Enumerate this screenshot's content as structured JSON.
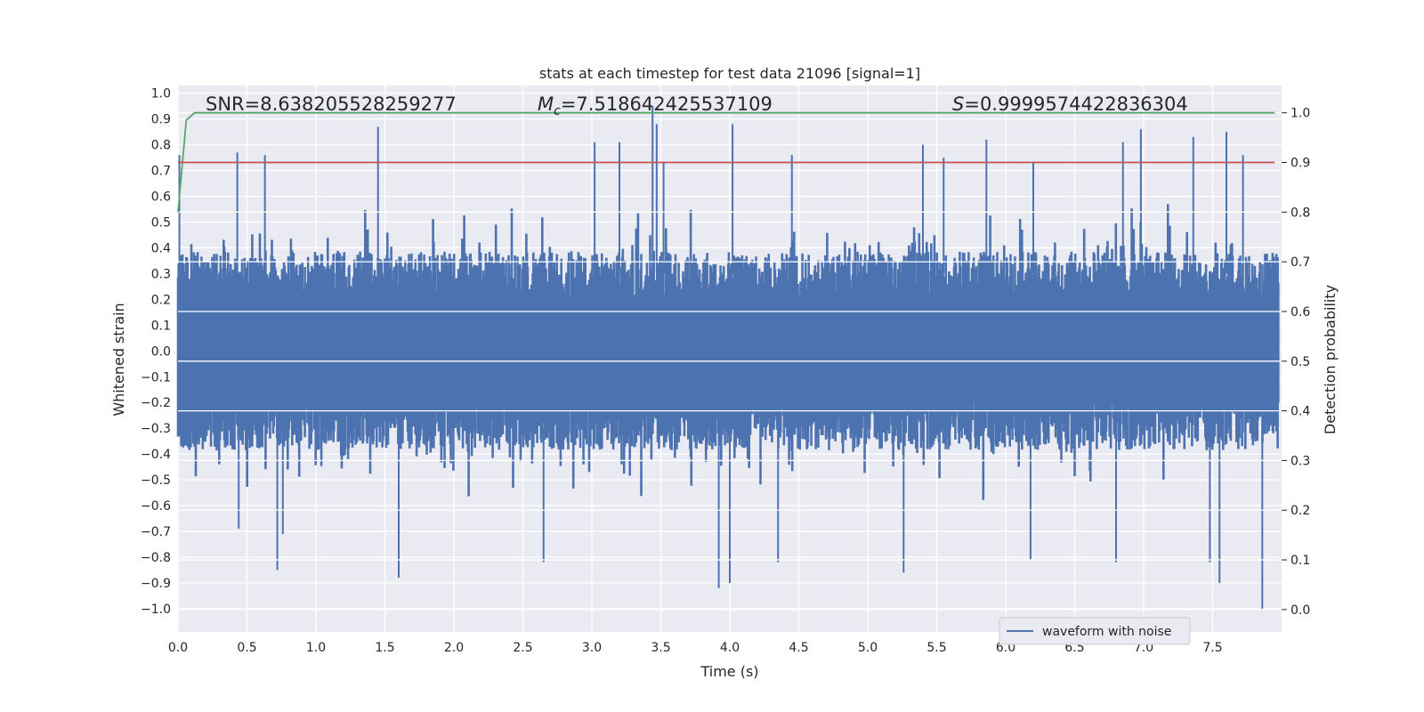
{
  "chart_data": {
    "type": "line",
    "title": "stats at each timestep for test data 21096 [signal=1]",
    "xlabel": "Time (s)",
    "ylabel": "Whitened strain",
    "y2label": "Detection probability",
    "xlim": [
      0.0,
      8.0
    ],
    "ylim": [
      -1.09,
      1.03
    ],
    "y2lim": [
      -0.045,
      1.055
    ],
    "xticks": [
      "0.0",
      "0.5",
      "1.0",
      "1.5",
      "2.0",
      "2.5",
      "3.0",
      "3.5",
      "4.0",
      "4.5",
      "5.0",
      "5.5",
      "6.0",
      "6.5",
      "7.0",
      "7.5"
    ],
    "xtick_values": [
      0,
      0.5,
      1,
      1.5,
      2,
      2.5,
      3,
      3.5,
      4,
      4.5,
      5,
      5.5,
      6,
      6.5,
      7,
      7.5
    ],
    "yticks": [
      "1.0",
      "0.9",
      "0.8",
      "0.7",
      "0.6",
      "0.5",
      "0.4",
      "0.3",
      "0.2",
      "0.1",
      "0.0",
      "−0.1",
      "−0.2",
      "−0.3",
      "−0.4",
      "−0.5",
      "−0.6",
      "−0.7",
      "−0.8",
      "−0.9",
      "−1.0"
    ],
    "ytick_values": [
      1,
      0.9,
      0.8,
      0.7,
      0.6,
      0.5,
      0.4,
      0.3,
      0.2,
      0.1,
      0,
      -0.1,
      -0.2,
      -0.3,
      -0.4,
      -0.5,
      -0.6,
      -0.7,
      -0.8,
      -0.9,
      -1
    ],
    "y2ticks": [
      "1.0",
      "0.9",
      "0.8",
      "0.7",
      "0.6",
      "0.5",
      "0.4",
      "0.3",
      "0.2",
      "0.1",
      "0.0"
    ],
    "y2tick_values": [
      1,
      0.9,
      0.8,
      0.7,
      0.6,
      0.5,
      0.4,
      0.3,
      0.2,
      0.1,
      0
    ],
    "annotations": {
      "snr": "SNR=8.638205528259277",
      "mc_symbol": "M",
      "mc_sub": "c",
      "mc_value": "=7.518642425537109",
      "s_symbol": "S",
      "s_value": "=0.9999574422836304"
    },
    "legend": {
      "label": "waveform with noise",
      "placement": "lower-right"
    },
    "series": [
      {
        "name": "waveform with noise",
        "axis": "left",
        "color": "#4c72b0",
        "envelope_typical": 0.35,
        "peaks_pos": [
          [
            0.01,
            0.76
          ],
          [
            0.43,
            0.77
          ],
          [
            0.63,
            0.76
          ],
          [
            1.45,
            0.87
          ],
          [
            3.02,
            0.81
          ],
          [
            3.2,
            0.81
          ],
          [
            3.44,
            0.95
          ],
          [
            3.47,
            0.88
          ],
          [
            3.52,
            0.73
          ],
          [
            4.02,
            0.88
          ],
          [
            4.45,
            0.76
          ],
          [
            5.4,
            0.8
          ],
          [
            5.55,
            0.75
          ],
          [
            5.86,
            0.82
          ],
          [
            6.2,
            0.73
          ],
          [
            6.85,
            0.81
          ],
          [
            6.98,
            0.86
          ],
          [
            7.36,
            0.83
          ],
          [
            7.6,
            0.85
          ],
          [
            7.72,
            0.76
          ]
        ],
        "peaks_neg": [
          [
            0.72,
            -0.85
          ],
          [
            1.6,
            -0.88
          ],
          [
            2.65,
            -0.82
          ],
          [
            3.92,
            -0.92
          ],
          [
            4.0,
            -0.9
          ],
          [
            4.35,
            -0.82
          ],
          [
            5.26,
            -0.86
          ],
          [
            6.18,
            -0.81
          ],
          [
            6.8,
            -0.82
          ],
          [
            7.48,
            -0.82
          ],
          [
            7.55,
            -0.9
          ],
          [
            7.86,
            -1.0
          ],
          [
            0.76,
            -0.71
          ],
          [
            0.44,
            -0.69
          ]
        ]
      },
      {
        "name": "detection probability",
        "axis": "right",
        "color": "#55a868",
        "x": [
          0.0,
          0.06,
          0.12,
          7.95
        ],
        "values": [
          0.8,
          0.985,
          1.0,
          1.0
        ]
      },
      {
        "name": "threshold",
        "axis": "right",
        "color": "#c44e52",
        "x": [
          0.0,
          7.95
        ],
        "values": [
          0.9,
          0.9
        ]
      }
    ]
  }
}
